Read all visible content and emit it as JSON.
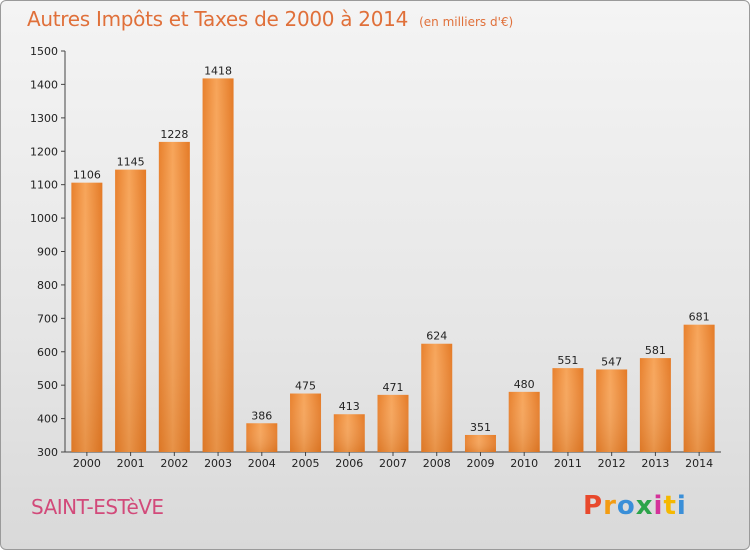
{
  "header": {
    "title": "Autres Impôts et Taxes de 2000 à 2014",
    "unit": "(en milliers d'€)"
  },
  "footer": {
    "commune": "SAINT-ESTèVE",
    "logo": "Proxiti",
    "logo_colors": [
      "#e8492c",
      "#f39c12",
      "#3a8fd8",
      "#2ca44a",
      "#d4329a",
      "#f5b800",
      "#3a8fd8"
    ]
  },
  "chart_data": {
    "type": "bar",
    "categories": [
      "2000",
      "2001",
      "2002",
      "2003",
      "2004",
      "2005",
      "2006",
      "2007",
      "2008",
      "2009",
      "2010",
      "2011",
      "2012",
      "2013",
      "2014"
    ],
    "values": [
      1106,
      1145,
      1228,
      1418,
      386,
      475,
      413,
      471,
      624,
      351,
      480,
      551,
      547,
      581,
      681
    ],
    "ylim": [
      300,
      1500
    ],
    "yticks": [
      300,
      400,
      500,
      600,
      700,
      800,
      900,
      1000,
      1100,
      1200,
      1300,
      1400,
      1500
    ],
    "grid": false,
    "bar_color": "#f0923e"
  }
}
